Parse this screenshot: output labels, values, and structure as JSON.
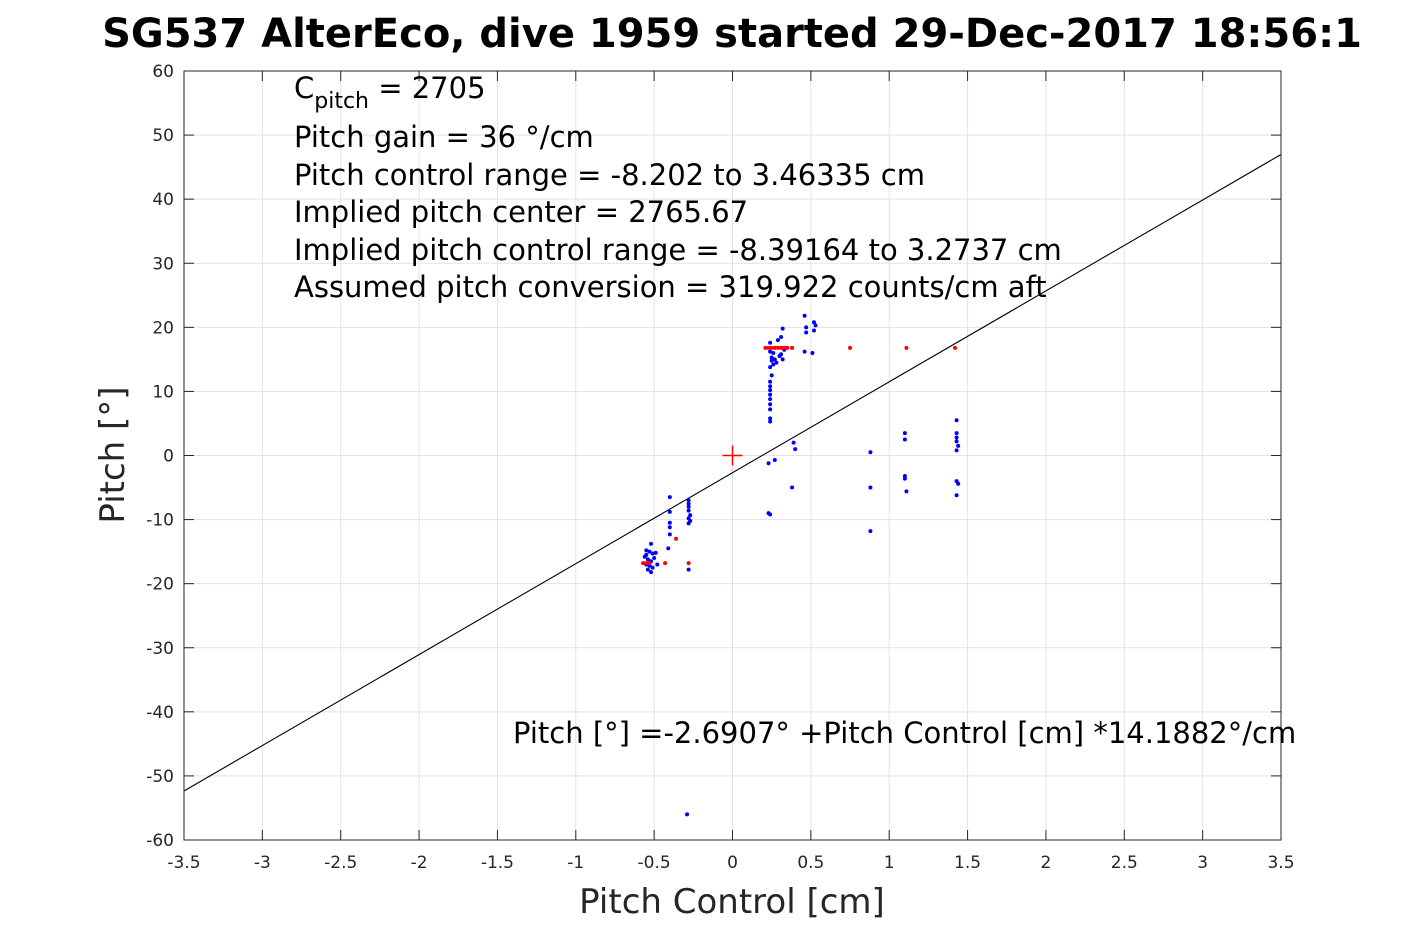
{
  "chart_data": {
    "type": "scatter",
    "title": "SG537 AlterEco, dive 1959 started 29-Dec-2017 18:56:1",
    "xlabel": "Pitch Control [cm]",
    "ylabel": "Pitch [°]",
    "xlim": [
      -3.5,
      3.5
    ],
    "ylim": [
      -60,
      60
    ],
    "xticks": [
      -3.5,
      -3,
      -2.5,
      -2,
      -1.5,
      -1,
      -0.5,
      0,
      0.5,
      1,
      1.5,
      2,
      2.5,
      3,
      3.5
    ],
    "yticks": [
      -60,
      -50,
      -40,
      -30,
      -20,
      -10,
      0,
      10,
      20,
      30,
      40,
      50,
      60
    ],
    "xtick_labels": [
      "-3.5",
      "-3",
      "-2.5",
      "-2",
      "-1.5",
      "-1",
      "-0.5",
      "0",
      "0.5",
      "1",
      "1.5",
      "2",
      "2.5",
      "3",
      "3.5"
    ],
    "ytick_labels": [
      "-60",
      "-50",
      "-40",
      "-30",
      "-20",
      "-10",
      "0",
      "10",
      "20",
      "30",
      "40",
      "50",
      "60"
    ],
    "grid": true,
    "colors": {
      "used": "#0000ff",
      "excluded": "#ff0000",
      "fit": "#000000",
      "center": "#ff0000",
      "grid": "#e3e3e3",
      "axes": "#262626"
    },
    "annotations": {
      "cpitch_symbol": "C",
      "cpitch_sub": "pitch",
      "cpitch_value": " = 2705",
      "lines": [
        "Pitch gain = 36 °/cm",
        "Pitch control range = -8.202 to 3.46335 cm",
        "Implied pitch center = 2765.67",
        "Implied pitch control range = -8.39164 to 3.2737 cm",
        "Assumed pitch conversion = 319.922 counts/cm aft"
      ],
      "fit_equation": "Pitch [°] =-2.6907° +Pitch Control [cm] *14.1882°/cm"
    },
    "fit_line": {
      "intercept": -2.6907,
      "slope": 14.1882
    },
    "center_marker": [
      0,
      0
    ],
    "series": [
      {
        "values": [
          [
            -0.55,
            -15.5
          ],
          [
            -0.54,
            -16.2
          ],
          [
            -0.53,
            -15.0
          ],
          [
            -0.52,
            -16.5
          ],
          [
            -0.55,
            -17.0
          ],
          [
            -0.53,
            -17.2
          ],
          [
            -0.56,
            -15.8
          ],
          [
            -0.51,
            -15.3
          ],
          [
            -0.5,
            -16.0
          ],
          [
            -0.52,
            -13.8
          ],
          [
            -0.52,
            -18.2
          ],
          [
            -0.54,
            -17.8
          ],
          [
            -0.49,
            -15.2
          ],
          [
            -0.48,
            -17.0
          ],
          [
            -0.55,
            -14.8
          ],
          [
            -0.53,
            -16.8
          ],
          [
            -0.51,
            -17.5
          ],
          [
            -0.4,
            -6.5
          ],
          [
            -0.4,
            -8.8
          ],
          [
            -0.4,
            -10.5
          ],
          [
            -0.4,
            -11.2
          ],
          [
            -0.4,
            -12.3
          ],
          [
            -0.41,
            -14.5
          ],
          [
            -0.28,
            -7.0
          ],
          [
            -0.28,
            -7.5
          ],
          [
            -0.28,
            -8.0
          ],
          [
            -0.28,
            -8.6
          ],
          [
            -0.27,
            -9.3
          ],
          [
            -0.28,
            -9.8
          ],
          [
            -0.27,
            -10.2
          ],
          [
            -0.28,
            -10.6
          ],
          [
            -0.28,
            -17.8
          ],
          [
            0.24,
            17.6
          ],
          [
            0.24,
            16.2
          ],
          [
            0.25,
            15.3
          ],
          [
            0.25,
            14.8
          ],
          [
            0.26,
            14.2
          ],
          [
            0.24,
            13.8
          ],
          [
            0.25,
            12.5
          ],
          [
            0.24,
            11.5
          ],
          [
            0.24,
            10.8
          ],
          [
            0.24,
            10.2
          ],
          [
            0.24,
            9.5
          ],
          [
            0.24,
            8.8
          ],
          [
            0.24,
            8.0
          ],
          [
            0.24,
            7.2
          ],
          [
            0.24,
            5.8
          ],
          [
            0.24,
            5.3
          ],
          [
            0.26,
            16.0
          ],
          [
            0.27,
            15.0
          ],
          [
            0.28,
            14.5
          ],
          [
            0.3,
            15.5
          ],
          [
            0.29,
            18.0
          ],
          [
            0.31,
            18.5
          ],
          [
            0.32,
            19.8
          ],
          [
            0.31,
            15.8
          ],
          [
            0.32,
            15.0
          ],
          [
            0.33,
            16.5
          ],
          [
            0.46,
            21.8
          ],
          [
            0.47,
            20.0
          ],
          [
            0.47,
            19.2
          ],
          [
            0.46,
            16.2
          ],
          [
            0.51,
            16.0
          ],
          [
            0.52,
            19.5
          ],
          [
            0.52,
            20.8
          ],
          [
            0.53,
            20.3
          ],
          [
            0.23,
            -1.2
          ],
          [
            0.27,
            -0.7
          ],
          [
            0.23,
            -9.0
          ],
          [
            0.24,
            -9.2
          ],
          [
            0.39,
            2.0
          ],
          [
            0.4,
            1.0
          ],
          [
            0.38,
            -5.0
          ],
          [
            0.88,
            0.5
          ],
          [
            0.88,
            -5.0
          ],
          [
            0.88,
            -11.8
          ],
          [
            1.1,
            3.5
          ],
          [
            1.1,
            2.5
          ],
          [
            1.1,
            -3.2
          ],
          [
            1.1,
            -3.6
          ],
          [
            1.11,
            -5.6
          ],
          [
            1.43,
            5.5
          ],
          [
            1.43,
            3.5
          ],
          [
            1.43,
            2.8
          ],
          [
            1.43,
            2.2
          ],
          [
            1.44,
            1.5
          ],
          [
            1.43,
            0.8
          ],
          [
            1.43,
            -4.0
          ],
          [
            1.44,
            -4.4
          ],
          [
            1.43,
            -6.2
          ],
          [
            -0.29,
            -56.0
          ]
        ]
      },
      {
        "values": [
          [
            -0.57,
            -16.8
          ],
          [
            -0.55,
            -16.8
          ],
          [
            -0.53,
            -16.8
          ],
          [
            -0.43,
            -16.8
          ],
          [
            -0.36,
            -13.0
          ],
          [
            -0.28,
            -16.8
          ],
          [
            0.21,
            16.8
          ],
          [
            0.23,
            16.8
          ],
          [
            0.25,
            16.8
          ],
          [
            0.27,
            16.8
          ],
          [
            0.29,
            16.8
          ],
          [
            0.31,
            16.8
          ],
          [
            0.33,
            16.8
          ],
          [
            0.35,
            16.8
          ],
          [
            0.38,
            16.8
          ],
          [
            0.75,
            16.8
          ],
          [
            1.11,
            16.8
          ],
          [
            1.42,
            16.8
          ]
        ]
      }
    ]
  }
}
